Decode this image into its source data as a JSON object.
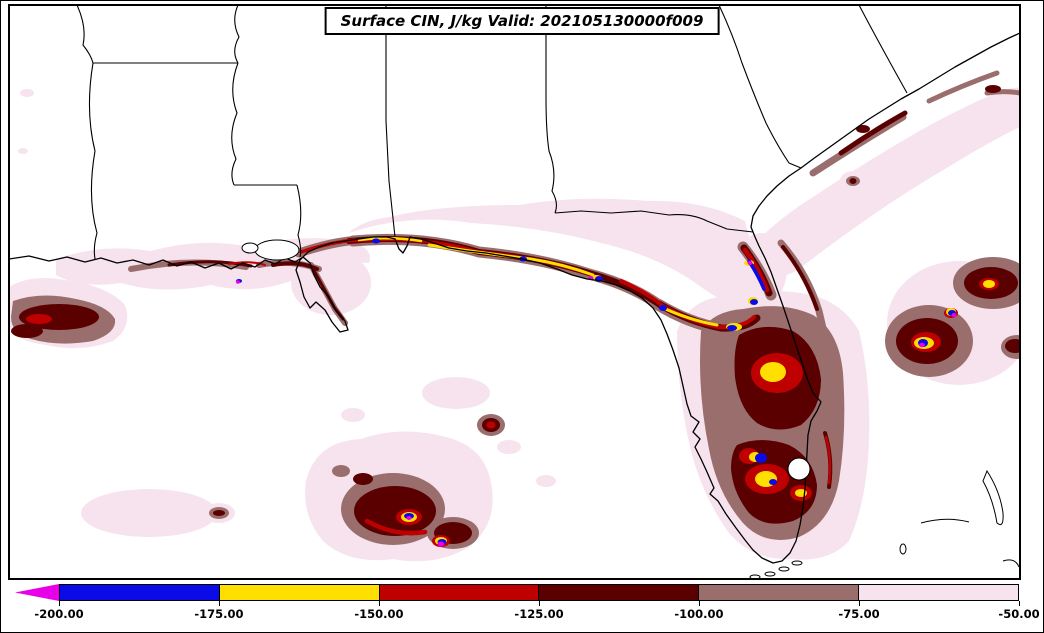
{
  "title": "Surface CIN, J/kg Valid: 202105130000f009",
  "field": "Surface CIN",
  "units": "J/kg",
  "valid_time": "202105130000f009",
  "colorbar": {
    "orientation": "horizontal",
    "extend_left_arrow": true,
    "tick_labels": [
      "-200.00",
      "-175.00",
      "-150.00",
      "-125.00",
      "-100.00",
      "-75.00",
      "-50.00"
    ],
    "segments": [
      {
        "range": "<= -200.00",
        "color": "#E800E8"
      },
      {
        "range": "-200.00 to -175.00",
        "color": "#0B0BE8"
      },
      {
        "range": "-175.00 to -150.00",
        "color": "#FFDF00"
      },
      {
        "range": "-150.00 to -125.00",
        "color": "#BE0000"
      },
      {
        "range": "-125.00 to -100.00",
        "color": "#5A0000"
      },
      {
        "range": "-100.00 to -75.00",
        "color": "#9B6E6E"
      },
      {
        "range": "-75.00 to -50.00",
        "color": "#F6E3EE"
      }
    ]
  }
}
